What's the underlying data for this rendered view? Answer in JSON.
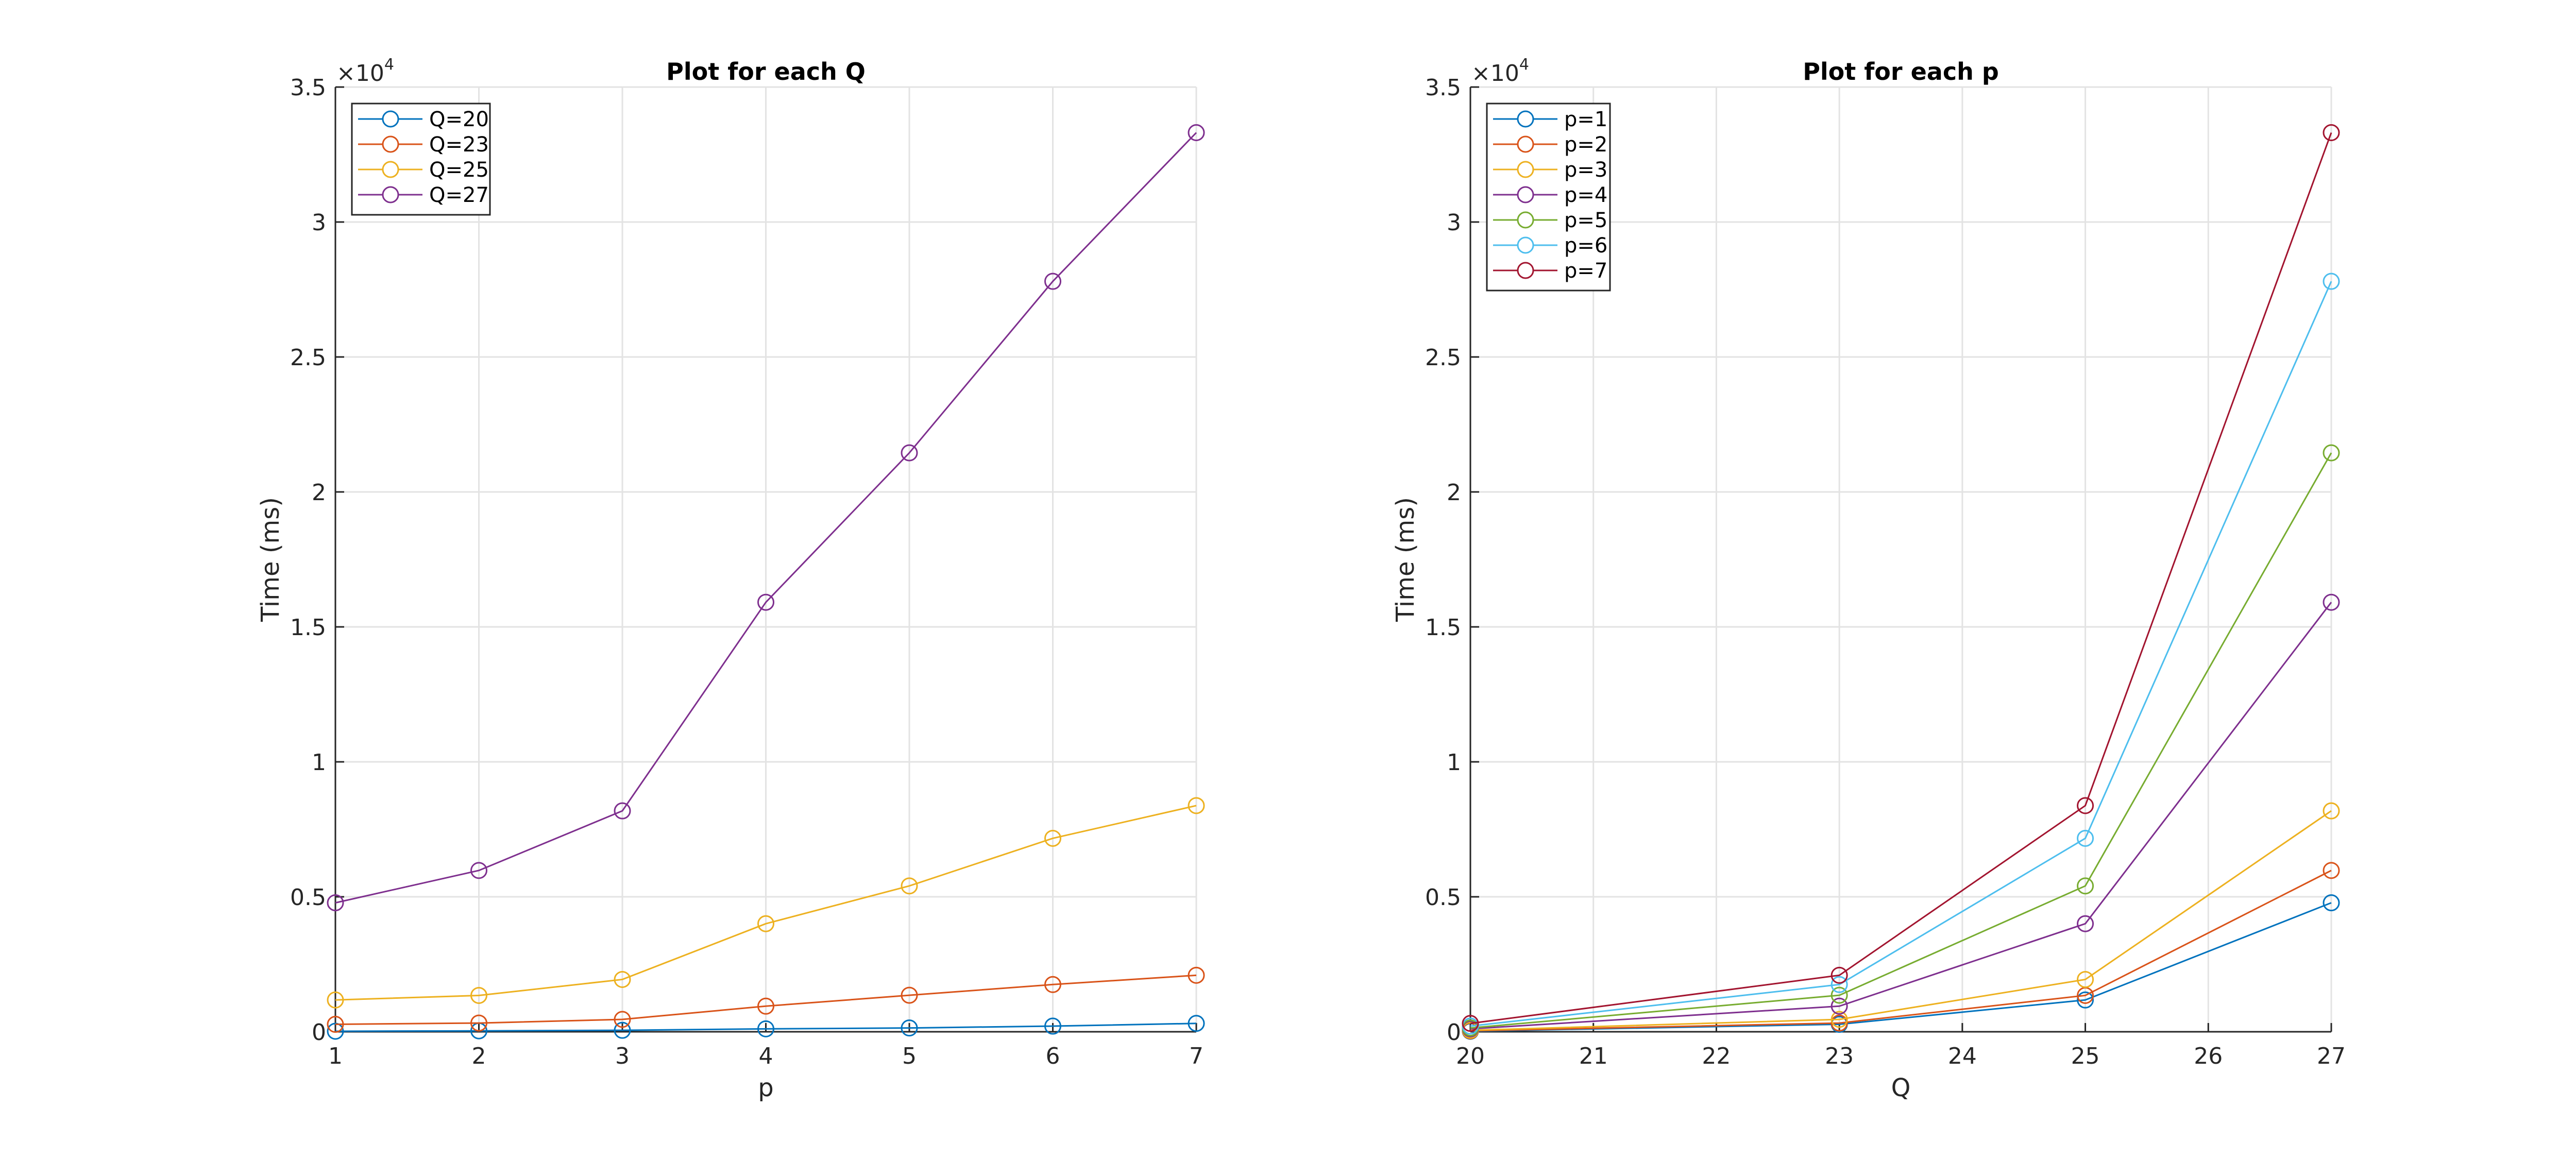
{
  "colors": [
    "#0072BD",
    "#D95319",
    "#EDB120",
    "#7E2F8E",
    "#77AC30",
    "#4DBEEE",
    "#A2142F"
  ],
  "chart_data": [
    {
      "type": "line",
      "title": "Plot for each Q",
      "xlabel": "p",
      "ylabel": "Time (ms)",
      "y_exponent_label": "×10",
      "y_exponent": "4",
      "x": [
        1,
        2,
        3,
        4,
        5,
        6,
        7
      ],
      "xlim": [
        1,
        7
      ],
      "ylim": [
        0,
        35000
      ],
      "xticks": [
        "1",
        "2",
        "3",
        "4",
        "5",
        "6",
        "7"
      ],
      "yticks": [
        "0",
        "0.5",
        "1",
        "1.5",
        "2",
        "2.5",
        "3",
        "3.5"
      ],
      "grid": true,
      "marker": "circle",
      "legend_position": "top-left",
      "series": [
        {
          "name": "Q=20",
          "values": [
            20,
            34,
            54,
            108,
            141,
            209,
            310
          ]
        },
        {
          "name": "Q=23",
          "values": [
            276,
            323,
            458,
            949,
            1353,
            1750,
            2093
          ]
        },
        {
          "name": "Q=25",
          "values": [
            1178,
            1346,
            1938,
            4004,
            5404,
            7167,
            8379
          ]
        },
        {
          "name": "Q=27",
          "values": [
            4778,
            5976,
            8184,
            15912,
            21448,
            27802,
            33311
          ]
        }
      ]
    },
    {
      "type": "line",
      "title": "Plot for each p",
      "xlabel": "Q",
      "ylabel": "Time (ms)",
      "y_exponent_label": "×10",
      "y_exponent": "4",
      "x": [
        20,
        23,
        25,
        27
      ],
      "xlim": [
        20,
        27
      ],
      "ylim": [
        0,
        35000
      ],
      "xticks": [
        "20",
        "21",
        "22",
        "23",
        "24",
        "25",
        "26",
        "27"
      ],
      "yticks": [
        "0",
        "0.5",
        "1",
        "1.5",
        "2",
        "2.5",
        "3",
        "3.5"
      ],
      "grid": true,
      "marker": "circle",
      "legend_position": "top-left",
      "series": [
        {
          "name": "p=1",
          "values": [
            20,
            276,
            1178,
            4778
          ]
        },
        {
          "name": "p=2",
          "values": [
            34,
            323,
            1346,
            5976
          ]
        },
        {
          "name": "p=3",
          "values": [
            54,
            458,
            1938,
            8184
          ]
        },
        {
          "name": "p=4",
          "values": [
            108,
            949,
            4004,
            15912
          ]
        },
        {
          "name": "p=5",
          "values": [
            141,
            1353,
            5404,
            21448
          ]
        },
        {
          "name": "p=6",
          "values": [
            209,
            1750,
            7167,
            27802
          ]
        },
        {
          "name": "p=7",
          "values": [
            310,
            2093,
            8379,
            33311
          ]
        }
      ]
    }
  ]
}
